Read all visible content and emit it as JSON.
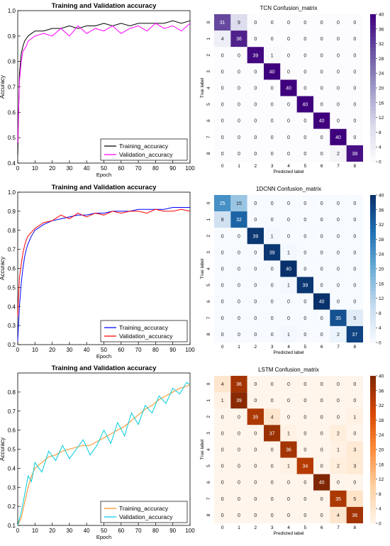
{
  "chart_data": [
    {
      "type": "line",
      "title": "Training and Validation accuracy",
      "xlabel": "Epoch",
      "ylabel": "Accuracy",
      "xlim": [
        0,
        100
      ],
      "ylim": [
        0.4,
        1.0
      ],
      "xticks": [
        0,
        10,
        20,
        30,
        40,
        50,
        60,
        70,
        80,
        90,
        100
      ],
      "yticks": [
        0.4,
        0.5,
        0.6,
        0.7,
        0.8,
        0.9,
        1.0
      ],
      "legend_position": "lower-right",
      "x": [
        0,
        1,
        2,
        3,
        4,
        5,
        6,
        8,
        10,
        15,
        20,
        25,
        30,
        35,
        40,
        45,
        50,
        55,
        60,
        65,
        70,
        75,
        80,
        85,
        90,
        95,
        100
      ],
      "series": [
        {
          "name": "Training_accuracy",
          "color": "#000000",
          "values": [
            0.43,
            0.75,
            0.83,
            0.86,
            0.88,
            0.89,
            0.9,
            0.91,
            0.92,
            0.92,
            0.93,
            0.93,
            0.94,
            0.93,
            0.94,
            0.94,
            0.95,
            0.94,
            0.95,
            0.94,
            0.95,
            0.95,
            0.95,
            0.95,
            0.96,
            0.95,
            0.96
          ]
        },
        {
          "name": "Validation_accuracy",
          "color": "#ff00ff",
          "values": [
            0.48,
            0.72,
            0.8,
            0.84,
            0.85,
            0.86,
            0.88,
            0.89,
            0.9,
            0.91,
            0.9,
            0.93,
            0.9,
            0.94,
            0.91,
            0.93,
            0.92,
            0.94,
            0.91,
            0.93,
            0.94,
            0.92,
            0.95,
            0.93,
            0.94,
            0.92,
            0.95
          ]
        }
      ]
    },
    {
      "type": "heatmap",
      "title": "TCN Confusion_matrix",
      "xlabel": "Predicted label",
      "ylabel": "True label",
      "labels": [
        "0",
        "1",
        "2",
        "3",
        "4",
        "5",
        "6",
        "7",
        "8"
      ],
      "colormap": "purples",
      "colorbar_ticks": [
        0,
        4,
        8,
        12,
        16,
        20,
        24,
        28,
        32,
        36,
        40
      ],
      "matrix": [
        [
          31,
          9,
          0,
          0,
          0,
          0,
          0,
          0,
          0
        ],
        [
          4,
          36,
          0,
          0,
          0,
          0,
          0,
          0,
          0
        ],
        [
          0,
          0,
          39,
          1,
          0,
          0,
          0,
          0,
          0
        ],
        [
          0,
          0,
          0,
          40,
          0,
          0,
          0,
          0,
          0
        ],
        [
          0,
          0,
          0,
          0,
          40,
          0,
          0,
          0,
          0
        ],
        [
          0,
          0,
          0,
          0,
          0,
          40,
          0,
          0,
          0
        ],
        [
          0,
          0,
          0,
          0,
          0,
          0,
          40,
          0,
          0
        ],
        [
          0,
          0,
          0,
          0,
          0,
          0,
          0,
          40,
          0
        ],
        [
          0,
          0,
          0,
          0,
          0,
          0,
          0,
          2,
          38
        ]
      ]
    },
    {
      "type": "line",
      "title": "Training and Validation accuracy",
      "xlabel": "Epoch",
      "ylabel": "Accuracy",
      "xlim": [
        0,
        100
      ],
      "ylim": [
        0.2,
        1.0
      ],
      "xticks": [
        0,
        10,
        20,
        30,
        40,
        50,
        60,
        70,
        80,
        90,
        100
      ],
      "yticks": [
        0.2,
        0.3,
        0.4,
        0.5,
        0.6,
        0.7,
        0.8,
        0.9,
        1.0
      ],
      "legend_position": "lower-right",
      "x": [
        0,
        1,
        2,
        3,
        4,
        5,
        6,
        8,
        10,
        15,
        20,
        25,
        30,
        35,
        40,
        45,
        50,
        55,
        60,
        65,
        70,
        75,
        80,
        85,
        90,
        95,
        100
      ],
      "series": [
        {
          "name": "Training_accuracy",
          "color": "#0000ff",
          "values": [
            0.22,
            0.4,
            0.52,
            0.6,
            0.66,
            0.7,
            0.73,
            0.77,
            0.8,
            0.83,
            0.85,
            0.86,
            0.87,
            0.88,
            0.88,
            0.89,
            0.89,
            0.9,
            0.9,
            0.9,
            0.91,
            0.91,
            0.91,
            0.91,
            0.92,
            0.92,
            0.92
          ]
        },
        {
          "name": "Validation_accuracy",
          "color": "#ff0000",
          "values": [
            0.35,
            0.55,
            0.62,
            0.68,
            0.72,
            0.75,
            0.77,
            0.79,
            0.81,
            0.84,
            0.85,
            0.88,
            0.86,
            0.89,
            0.87,
            0.89,
            0.88,
            0.9,
            0.89,
            0.9,
            0.9,
            0.89,
            0.91,
            0.9,
            0.9,
            0.91,
            0.9
          ]
        }
      ]
    },
    {
      "type": "heatmap",
      "title": "1DCNN Confusion_matrix",
      "xlabel": "Predicted label",
      "ylabel": "True label",
      "labels": [
        "0",
        "1",
        "2",
        "3",
        "4",
        "5",
        "6",
        "7",
        "8"
      ],
      "colormap": "blues",
      "colorbar_ticks": [
        0,
        4,
        8,
        12,
        16,
        20,
        24,
        28,
        32,
        36,
        40
      ],
      "matrix": [
        [
          25,
          15,
          0,
          0,
          0,
          0,
          0,
          0,
          0
        ],
        [
          8,
          32,
          0,
          0,
          0,
          0,
          0,
          0,
          0
        ],
        [
          0,
          0,
          39,
          1,
          0,
          0,
          0,
          0,
          0
        ],
        [
          0,
          0,
          0,
          39,
          1,
          0,
          0,
          0,
          0
        ],
        [
          0,
          0,
          0,
          0,
          40,
          0,
          0,
          0,
          0
        ],
        [
          0,
          0,
          0,
          0,
          1,
          39,
          0,
          0,
          0
        ],
        [
          0,
          0,
          0,
          0,
          0,
          0,
          40,
          0,
          0
        ],
        [
          0,
          0,
          0,
          0,
          0,
          0,
          0,
          35,
          5
        ],
        [
          0,
          0,
          0,
          0,
          1,
          0,
          0,
          2,
          37
        ]
      ]
    },
    {
      "type": "line",
      "title": "Training and Validation accuracy",
      "xlabel": "Epoch",
      "ylabel": "Accuracy",
      "xlim": [
        0,
        100
      ],
      "ylim": [
        0.1,
        0.9
      ],
      "xticks": [
        0,
        10,
        20,
        30,
        40,
        50,
        60,
        70,
        80,
        90,
        100
      ],
      "yticks": [
        0.1,
        0.2,
        0.3,
        0.4,
        0.5,
        0.6,
        0.7,
        0.8
      ],
      "legend_position": "lower-right",
      "x": [
        0,
        2,
        4,
        6,
        8,
        10,
        14,
        18,
        22,
        26,
        30,
        34,
        38,
        42,
        46,
        50,
        54,
        58,
        62,
        66,
        70,
        74,
        78,
        82,
        86,
        90,
        94,
        98,
        100
      ],
      "series": [
        {
          "name": "Training_accuracy",
          "color": "#ff8c1a",
          "values": [
            0.1,
            0.14,
            0.22,
            0.3,
            0.36,
            0.4,
            0.43,
            0.46,
            0.47,
            0.49,
            0.5,
            0.51,
            0.52,
            0.52,
            0.54,
            0.56,
            0.58,
            0.6,
            0.62,
            0.65,
            0.68,
            0.71,
            0.73,
            0.76,
            0.78,
            0.8,
            0.82,
            0.83,
            0.84
          ]
        },
        {
          "name": "Validation_accuracy",
          "color": "#00ccdd",
          "values": [
            0.1,
            0.17,
            0.26,
            0.36,
            0.33,
            0.43,
            0.38,
            0.49,
            0.44,
            0.52,
            0.45,
            0.5,
            0.55,
            0.47,
            0.52,
            0.6,
            0.53,
            0.64,
            0.57,
            0.69,
            0.63,
            0.73,
            0.69,
            0.78,
            0.74,
            0.82,
            0.79,
            0.85,
            0.84
          ]
        }
      ]
    },
    {
      "type": "heatmap",
      "title": "LSTM Confusion_matrix",
      "xlabel": "Predicted label",
      "ylabel": "True label",
      "labels": [
        "0",
        "1",
        "2",
        "3",
        "4",
        "5",
        "6",
        "7",
        "8"
      ],
      "colormap": "oranges",
      "colorbar_ticks": [
        0,
        4,
        8,
        12,
        16,
        20,
        24,
        28,
        32,
        36,
        40
      ],
      "matrix": [
        [
          4,
          36,
          0,
          0,
          0,
          0,
          0,
          0,
          0
        ],
        [
          1,
          39,
          0,
          0,
          0,
          0,
          0,
          0,
          0
        ],
        [
          0,
          0,
          35,
          4,
          0,
          0,
          0,
          0,
          1
        ],
        [
          0,
          0,
          0,
          37,
          1,
          0,
          0,
          2,
          0
        ],
        [
          0,
          0,
          0,
          0,
          36,
          0,
          0,
          1,
          3
        ],
        [
          0,
          0,
          0,
          0,
          1,
          34,
          0,
          2,
          3
        ],
        [
          0,
          0,
          0,
          0,
          0,
          0,
          40,
          0,
          0
        ],
        [
          0,
          0,
          0,
          0,
          0,
          0,
          0,
          35,
          5
        ],
        [
          0,
          0,
          0,
          0,
          0,
          0,
          0,
          4,
          36
        ]
      ]
    }
  ]
}
